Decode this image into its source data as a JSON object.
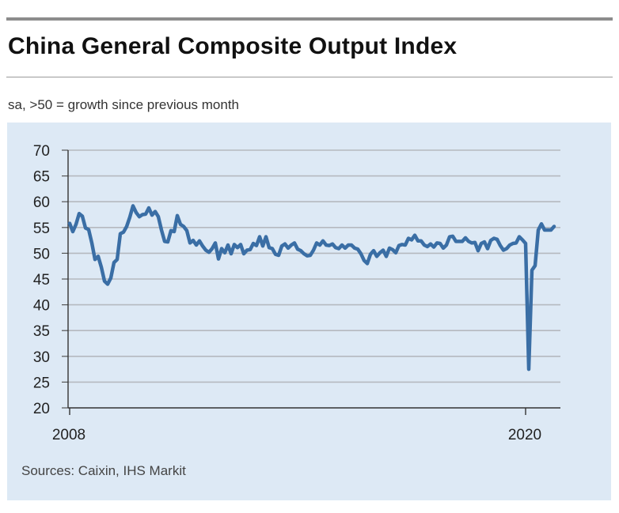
{
  "header": {
    "title": "China General Composite Output Index",
    "subtitle": "sa, >50 = growth since previous month"
  },
  "footer": {
    "source": "Sources: Caixin, IHS Markit"
  },
  "colors": {
    "line": "#3a6ea5",
    "panel": "#dde9f5",
    "grid": "#b5b9bf"
  },
  "chart_data": {
    "type": "line",
    "title": "China General Composite Output Index",
    "subtitle": "sa, >50 = growth since previous month",
    "xlabel": "",
    "ylabel": "",
    "ylim": [
      20,
      70
    ],
    "yticks": [
      20,
      25,
      30,
      35,
      40,
      45,
      50,
      55,
      60,
      65,
      70
    ],
    "xtick_labels": [
      {
        "label": "2008",
        "at": "2008-01"
      },
      {
        "label": "2020",
        "at": "2020-01"
      }
    ],
    "grid": true,
    "x": [
      "2008-01",
      "2008-02",
      "2008-03",
      "2008-04",
      "2008-05",
      "2008-06",
      "2008-07",
      "2008-08",
      "2008-09",
      "2008-10",
      "2008-11",
      "2008-12",
      "2009-01",
      "2009-02",
      "2009-03",
      "2009-04",
      "2009-05",
      "2009-06",
      "2009-07",
      "2009-08",
      "2009-09",
      "2009-10",
      "2009-11",
      "2009-12",
      "2010-01",
      "2010-02",
      "2010-03",
      "2010-04",
      "2010-05",
      "2010-06",
      "2010-07",
      "2010-08",
      "2010-09",
      "2010-10",
      "2010-11",
      "2010-12",
      "2011-01",
      "2011-02",
      "2011-03",
      "2011-04",
      "2011-05",
      "2011-06",
      "2011-07",
      "2011-08",
      "2011-09",
      "2011-10",
      "2011-11",
      "2011-12",
      "2012-01",
      "2012-02",
      "2012-03",
      "2012-04",
      "2012-05",
      "2012-06",
      "2012-07",
      "2012-08",
      "2012-09",
      "2012-10",
      "2012-11",
      "2012-12",
      "2013-01",
      "2013-02",
      "2013-03",
      "2013-04",
      "2013-05",
      "2013-06",
      "2013-07",
      "2013-08",
      "2013-09",
      "2013-10",
      "2013-11",
      "2013-12",
      "2014-01",
      "2014-02",
      "2014-03",
      "2014-04",
      "2014-05",
      "2014-06",
      "2014-07",
      "2014-08",
      "2014-09",
      "2014-10",
      "2014-11",
      "2014-12",
      "2015-01",
      "2015-02",
      "2015-03",
      "2015-04",
      "2015-05",
      "2015-06",
      "2015-07",
      "2015-08",
      "2015-09",
      "2015-10",
      "2015-11",
      "2015-12",
      "2016-01",
      "2016-02",
      "2016-03",
      "2016-04",
      "2016-05",
      "2016-06",
      "2016-07",
      "2016-08",
      "2016-09",
      "2016-10",
      "2016-11",
      "2016-12",
      "2017-01",
      "2017-02",
      "2017-03",
      "2017-04",
      "2017-05",
      "2017-06",
      "2017-07",
      "2017-08",
      "2017-09",
      "2017-10",
      "2017-11",
      "2017-12",
      "2018-01",
      "2018-02",
      "2018-03",
      "2018-04",
      "2018-05",
      "2018-06",
      "2018-07",
      "2018-08",
      "2018-09",
      "2018-10",
      "2018-11",
      "2018-12",
      "2019-01",
      "2019-02",
      "2019-03",
      "2019-04",
      "2019-05",
      "2019-06",
      "2019-07",
      "2019-08",
      "2019-09",
      "2019-10",
      "2019-11",
      "2019-12",
      "2020-01",
      "2020-02",
      "2020-03",
      "2020-04",
      "2020-05",
      "2020-06",
      "2020-07",
      "2020-08",
      "2020-09",
      "2020-10"
    ],
    "series": [
      {
        "values": [
          55.8,
          54.2,
          55.6,
          57.7,
          57.2,
          54.9,
          54.6,
          52.0,
          48.8,
          49.4,
          47.3,
          44.6,
          44.0,
          45.2,
          48.2,
          48.8,
          53.8,
          54.1,
          55.2,
          57.0,
          59.2,
          57.9,
          57.1,
          57.5,
          57.6,
          58.8,
          57.4,
          58.1,
          57.1,
          54.5,
          52.3,
          52.2,
          54.4,
          54.2,
          57.3,
          55.6,
          55.2,
          54.4,
          52.0,
          52.5,
          51.6,
          52.4,
          51.4,
          50.6,
          50.2,
          50.9,
          52.0,
          48.9,
          50.9,
          50.1,
          51.6,
          49.9,
          51.7,
          51.1,
          51.7,
          49.9,
          50.6,
          50.7,
          51.9,
          51.5,
          53.2,
          51.4,
          53.2,
          51.1,
          50.9,
          49.8,
          49.6,
          51.4,
          51.8,
          51.0,
          51.6,
          52.0,
          50.8,
          50.5,
          49.9,
          49.5,
          49.6,
          50.6,
          52.0,
          51.6,
          52.4,
          51.6,
          51.5,
          51.8,
          51.1,
          50.9,
          51.6,
          51.0,
          51.6,
          51.6,
          51.0,
          50.8,
          49.9,
          48.6,
          48.0,
          49.8,
          50.5,
          49.4,
          50.1,
          50.6,
          49.4,
          51.0,
          50.7,
          50.1,
          51.5,
          51.7,
          51.6,
          52.9,
          52.6,
          53.5,
          52.4,
          52.4,
          51.6,
          51.3,
          51.8,
          51.2,
          52.0,
          51.9,
          51.0,
          51.6,
          53.2,
          53.3,
          52.3,
          52.3,
          52.3,
          53.0,
          52.3,
          52.0,
          52.1,
          50.5,
          51.9,
          52.2,
          50.9,
          52.5,
          52.9,
          52.7,
          51.5,
          50.6,
          50.9,
          51.6,
          51.9,
          52.0,
          53.2,
          52.6,
          51.9,
          27.5,
          46.7,
          47.6,
          54.5,
          55.7,
          54.5,
          54.5,
          54.5,
          55.2
        ]
      }
    ]
  }
}
